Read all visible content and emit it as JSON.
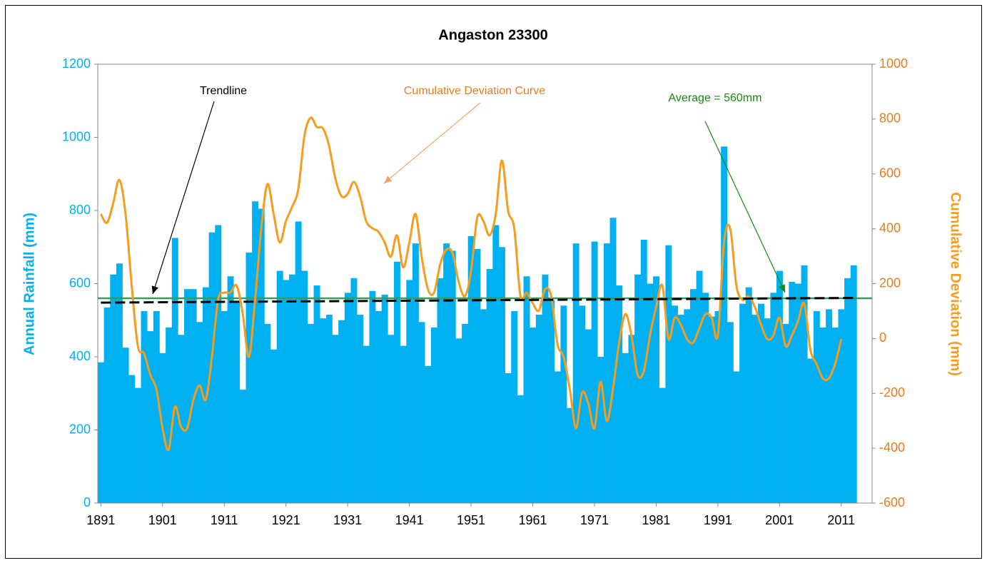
{
  "chart_data": {
    "type": "bar_line_dual_axis",
    "title": "Angaston 23300",
    "ylabel": "Annual Rainfall (mm)",
    "y2label": "Cumulative Deviation (mm)",
    "xlim": [
      1890.5,
      2016
    ],
    "xticks": [
      1891,
      1901,
      1911,
      1921,
      1931,
      1941,
      1951,
      1961,
      1971,
      1981,
      1991,
      2001,
      2011
    ],
    "ylim": [
      0,
      1200
    ],
    "yticks": [
      0,
      200,
      400,
      600,
      800,
      1000,
      1200
    ],
    "y2lim": [
      -600,
      1000
    ],
    "y2ticks": [
      -600,
      -400,
      -200,
      0,
      200,
      400,
      600,
      800,
      1000
    ],
    "series": [
      {
        "name": "Annual Rainfall",
        "kind": "bar",
        "color": "#00b0f0",
        "x": [
          1891,
          1892,
          1893,
          1894,
          1895,
          1896,
          1897,
          1898,
          1899,
          1900,
          1901,
          1902,
          1903,
          1904,
          1905,
          1906,
          1907,
          1908,
          1909,
          1910,
          1911,
          1912,
          1913,
          1914,
          1915,
          1916,
          1917,
          1918,
          1919,
          1920,
          1921,
          1922,
          1923,
          1924,
          1925,
          1926,
          1927,
          1928,
          1929,
          1930,
          1931,
          1932,
          1933,
          1934,
          1935,
          1936,
          1937,
          1938,
          1939,
          1940,
          1941,
          1942,
          1943,
          1944,
          1945,
          1946,
          1947,
          1948,
          1949,
          1950,
          1951,
          1952,
          1953,
          1954,
          1955,
          1956,
          1957,
          1958,
          1959,
          1960,
          1961,
          1962,
          1963,
          1964,
          1965,
          1966,
          1967,
          1968,
          1969,
          1970,
          1971,
          1972,
          1973,
          1974,
          1975,
          1976,
          1977,
          1978,
          1979,
          1980,
          1981,
          1982,
          1983,
          1984,
          1985,
          1986,
          1987,
          1988,
          1989,
          1990,
          1991,
          1992,
          1993,
          1994,
          1995,
          1996,
          1997,
          1998,
          1999,
          2000,
          2001,
          2002,
          2003,
          2004,
          2005,
          2006,
          2007,
          2008,
          2009,
          2010,
          2011,
          2012,
          2013
        ],
        "values": [
          385,
          535,
          625,
          655,
          425,
          350,
          315,
          525,
          470,
          525,
          410,
          480,
          725,
          460,
          585,
          585,
          495,
          590,
          740,
          760,
          525,
          620,
          550,
          310,
          685,
          825,
          805,
          490,
          420,
          635,
          610,
          625,
          770,
          635,
          490,
          595,
          505,
          515,
          460,
          500,
          575,
          615,
          515,
          430,
          580,
          525,
          570,
          460,
          660,
          430,
          610,
          710,
          495,
          375,
          480,
          615,
          710,
          690,
          450,
          490,
          730,
          695,
          530,
          640,
          760,
          700,
          355,
          525,
          295,
          620,
          480,
          515,
          625,
          555,
          360,
          540,
          260,
          710,
          540,
          475,
          715,
          400,
          710,
          780,
          595,
          410,
          460,
          625,
          720,
          600,
          620,
          315,
          705,
          540,
          515,
          530,
          585,
          635,
          575,
          510,
          525,
          975,
          495,
          360,
          545,
          590,
          515,
          545,
          505,
          575,
          635,
          490,
          605,
          600,
          650,
          395,
          525,
          480,
          530,
          480,
          530,
          615,
          650
        ]
      },
      {
        "name": "Cumulative Deviation Curve",
        "kind": "line",
        "axis": "y2",
        "color": "#f59d1e",
        "x": [
          1891,
          1892,
          1893,
          1894,
          1895,
          1896,
          1897,
          1898,
          1899,
          1900,
          1901,
          1902,
          1903,
          1904,
          1905,
          1906,
          1907,
          1908,
          1909,
          1910,
          1911,
          1912,
          1913,
          1914,
          1915,
          1916,
          1917,
          1918,
          1919,
          1920,
          1921,
          1922,
          1923,
          1924,
          1925,
          1926,
          1927,
          1928,
          1929,
          1930,
          1931,
          1932,
          1933,
          1934,
          1935,
          1936,
          1937,
          1938,
          1939,
          1940,
          1941,
          1942,
          1943,
          1944,
          1945,
          1946,
          1947,
          1948,
          1949,
          1950,
          1951,
          1952,
          1953,
          1954,
          1955,
          1956,
          1957,
          1958,
          1959,
          1960,
          1961,
          1962,
          1963,
          1964,
          1965,
          1966,
          1967,
          1968,
          1969,
          1970,
          1971,
          1972,
          1973,
          1974,
          1975,
          1976,
          1977,
          1978,
          1979,
          1980,
          1981,
          1982,
          1983,
          1984,
          1985,
          1986,
          1987,
          1988,
          1989,
          1990,
          1991,
          1992,
          1993,
          1994,
          1995,
          1996,
          1997,
          1998,
          1999,
          2000,
          2001,
          2002,
          2003,
          2004,
          2005,
          2006,
          2007,
          2008,
          2009,
          2010,
          2011
        ],
        "values": [
          454,
          422,
          493,
          578,
          454,
          193,
          -28,
          -54,
          -132,
          -184,
          -327,
          -405,
          -249,
          -322,
          -327,
          -223,
          -171,
          -223,
          -67,
          141,
          167,
          167,
          193,
          90,
          -67,
          141,
          402,
          563,
          454,
          350,
          428,
          480,
          545,
          740,
          805,
          771,
          766,
          701,
          584,
          519,
          527,
          571,
          519,
          428,
          402,
          389,
          350,
          298,
          376,
          259,
          350,
          454,
          298,
          180,
          167,
          271,
          324,
          311,
          206,
          154,
          245,
          441,
          428,
          376,
          454,
          649,
          467,
          402,
          154,
          167,
          128,
          102,
          180,
          154,
          -20,
          -67,
          -184,
          -327,
          -197,
          -236,
          -327,
          -158,
          -301,
          -184,
          -15,
          89,
          11,
          -132,
          -119,
          11,
          115,
          193,
          -2,
          76,
          50,
          -2,
          -15,
          37,
          89,
          76,
          11,
          350,
          402,
          193,
          141,
          154,
          115,
          50,
          -2,
          11,
          76,
          -28,
          11,
          63,
          128,
          -41,
          -93,
          -145,
          -145,
          -93,
          -2
        ]
      },
      {
        "name": "Trendline",
        "kind": "dashed",
        "color": "#000000",
        "x": [
          1891,
          2013
        ],
        "values": [
          548,
          561
        ]
      }
    ],
    "average": {
      "label": "Average = 560mm",
      "value": 560,
      "color": "#3a9a5b"
    },
    "annotations": [
      {
        "text": "Trendline",
        "color": "#000000"
      },
      {
        "text": "Cumulative Deviation Curve",
        "color": "#e87d1e"
      }
    ]
  }
}
